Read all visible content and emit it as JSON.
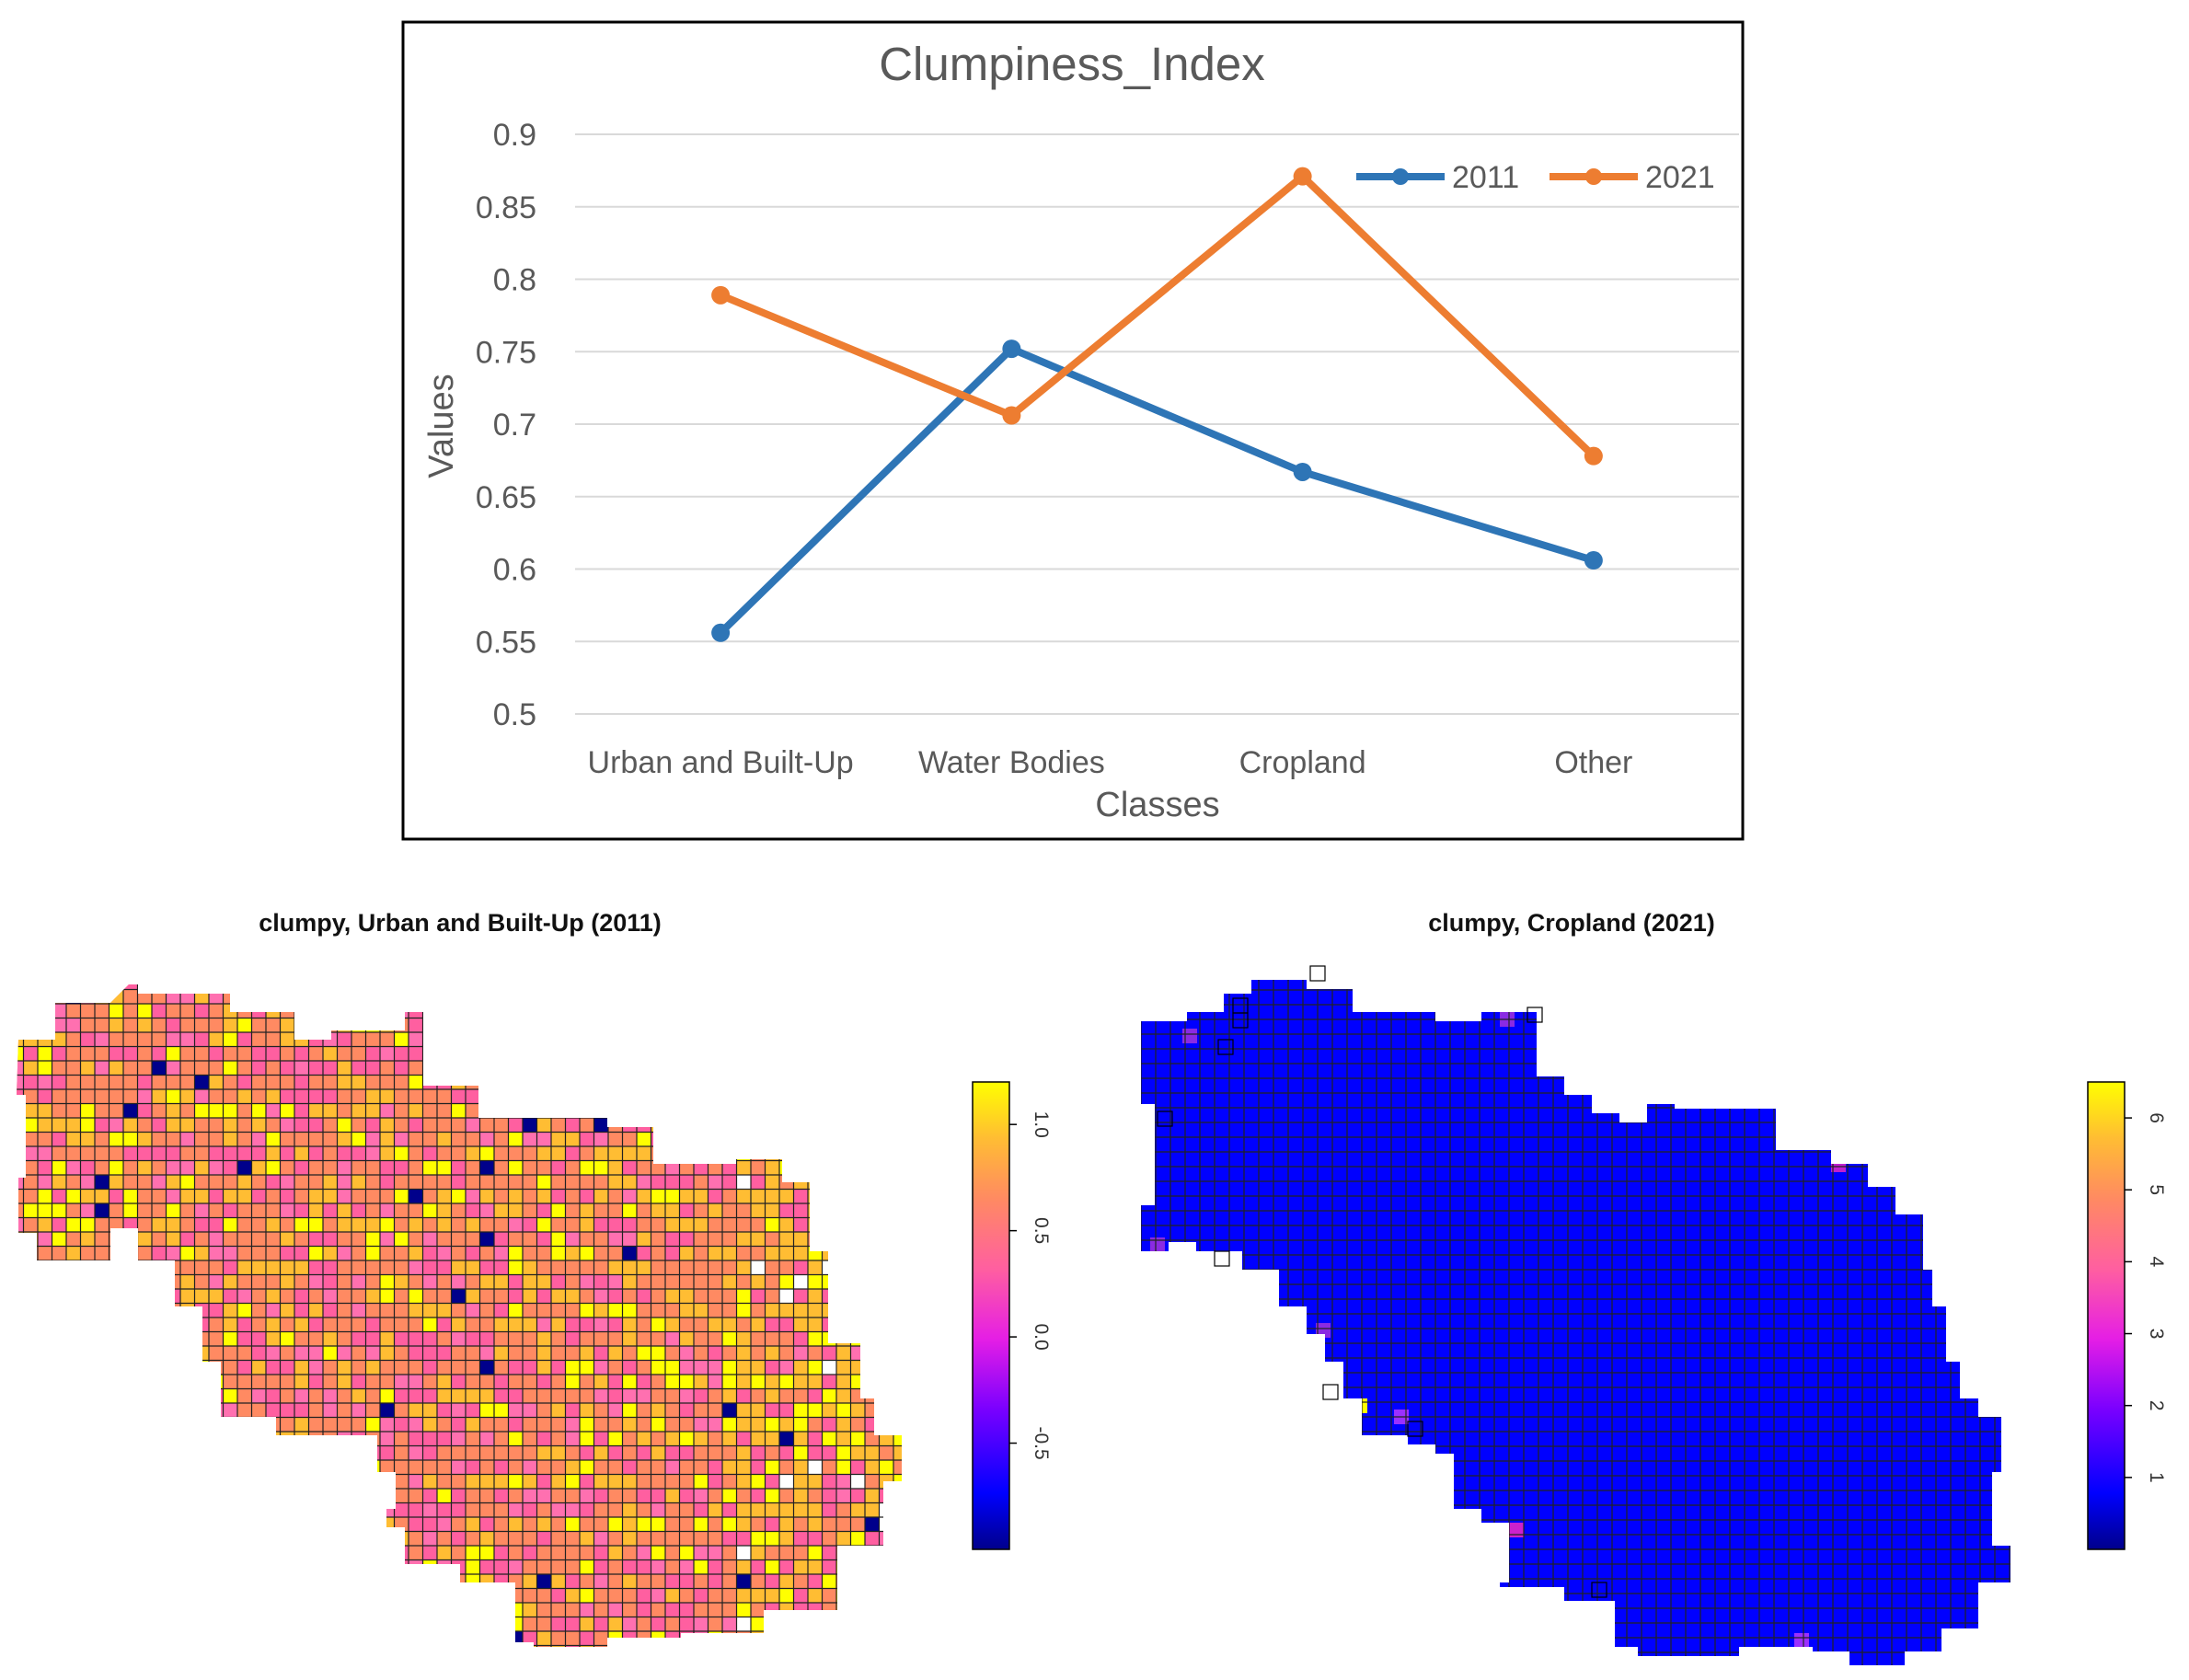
{
  "chart_data": [
    {
      "type": "line",
      "title": "Clumpiness_Index",
      "xlabel": "Classes",
      "ylabel": "Values",
      "categories": [
        "Urban and Built-Up",
        "Water Bodies",
        "Cropland",
        "Other"
      ],
      "series": [
        {
          "name": "2011",
          "color": "#2e75b6",
          "values": [
            0.556,
            0.752,
            0.667,
            0.606
          ]
        },
        {
          "name": "2021",
          "color": "#ed7d31",
          "values": [
            0.789,
            0.706,
            0.871,
            0.678
          ]
        }
      ],
      "ylim": [
        0.5,
        0.9
      ],
      "yticks": [
        "0.5",
        "0.55",
        "0.6",
        "0.65",
        "0.7",
        "0.75",
        "0.8",
        "0.85",
        "0.9"
      ],
      "grid": true,
      "legend_position": "top-right"
    },
    {
      "type": "heatmap",
      "title": "clumpy, Urban and Built-Up (2011)",
      "colorbar_range": [
        -1.0,
        1.2
      ],
      "colorbar_ticks": [
        "-0.5",
        "0.0",
        "0.5",
        "1.0"
      ],
      "dominant_values": "0.3 to 1.1 (pink/orange/yellow cells)",
      "palette": [
        "#00008b",
        "#0000ff",
        "#7a00ff",
        "#e51ee5",
        "#ff5fa0",
        "#ff8a62",
        "#ffbd33",
        "#ffff00"
      ]
    },
    {
      "type": "heatmap",
      "title": "clumpy, Cropland (2021)",
      "colorbar_range": [
        0,
        6.5
      ],
      "colorbar_ticks": [
        "1",
        "2",
        "3",
        "4",
        "5",
        "6"
      ],
      "dominant_values": "about 0.5 (blue cells)",
      "palette": [
        "#00008b",
        "#0000ff",
        "#7a00ff",
        "#e51ee5",
        "#ff5fa0",
        "#ff8a62",
        "#ffbd33",
        "#ffff00"
      ]
    }
  ]
}
